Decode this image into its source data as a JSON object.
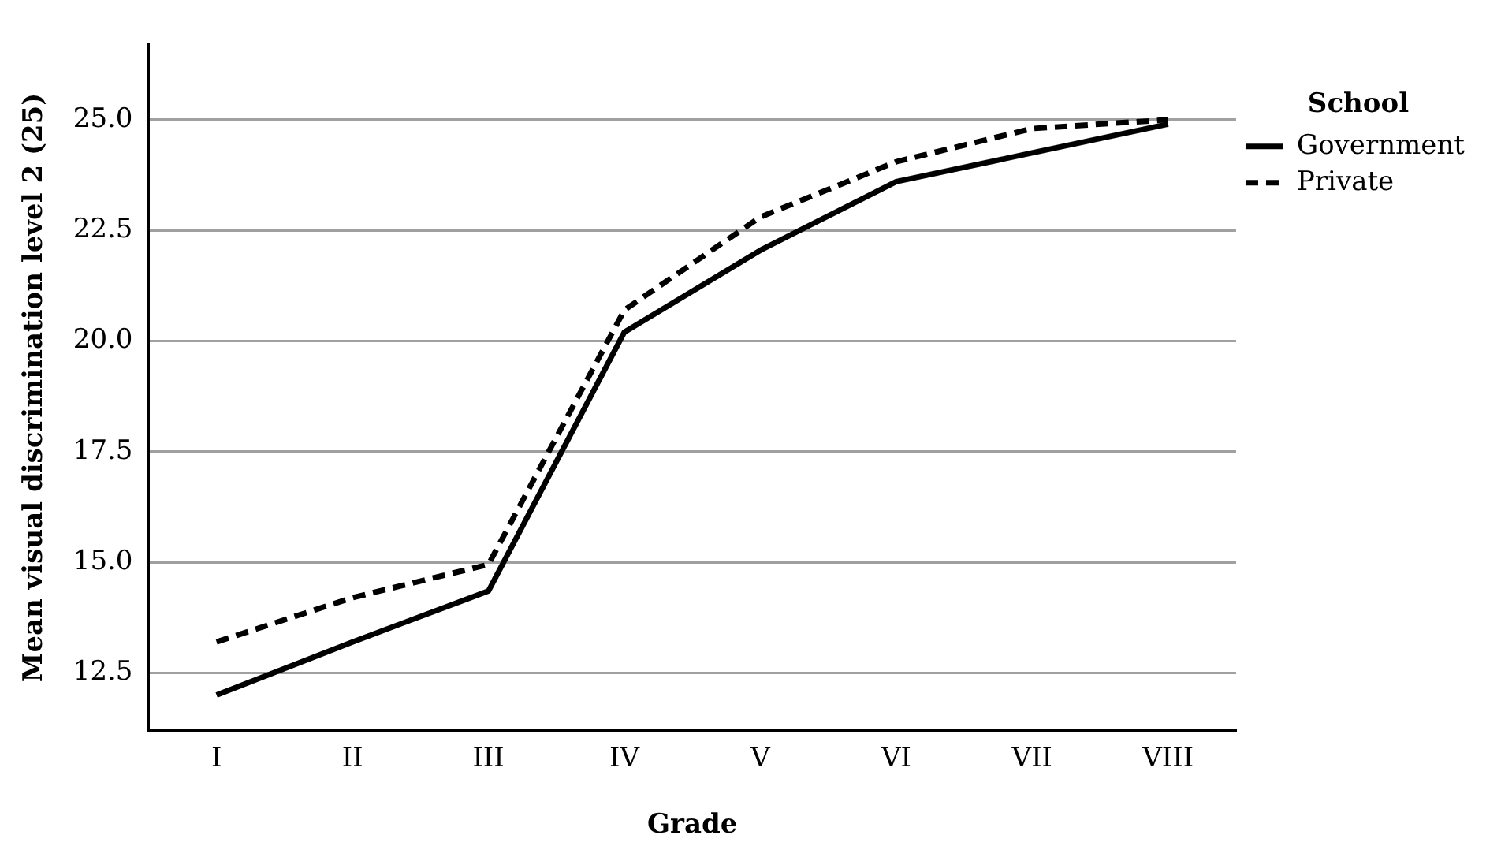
{
  "chart_data": {
    "type": "line",
    "xlabel": "Grade",
    "ylabel": "Mean visual discrimination level 2 (25)",
    "legend_title": "School",
    "categories": [
      "I",
      "II",
      "III",
      "IV",
      "V",
      "VI",
      "VII",
      "VIII"
    ],
    "series": [
      {
        "name": "Government",
        "color": "#000000",
        "line_style": "solid",
        "values": [
          12.0,
          13.2,
          14.35,
          20.2,
          22.05,
          23.6,
          24.25,
          24.9
        ]
      },
      {
        "name": "Private",
        "color": "#000000",
        "line_style": "dashed",
        "values": [
          13.2,
          14.2,
          14.95,
          20.7,
          22.8,
          24.05,
          24.8,
          25.0
        ]
      }
    ],
    "ylim": [
      11.2,
      26.7
    ],
    "yticks": [
      {
        "value": 12.5,
        "label": "12.5"
      },
      {
        "value": 15,
        "label": "15.0"
      },
      {
        "value": 17.5,
        "label": "17.5"
      },
      {
        "value": 20,
        "label": "20.0"
      },
      {
        "value": 22.5,
        "label": "22.5"
      },
      {
        "value": 25,
        "label": "25.0"
      }
    ],
    "grid": "y",
    "legend": "top right",
    "marker": "none"
  }
}
